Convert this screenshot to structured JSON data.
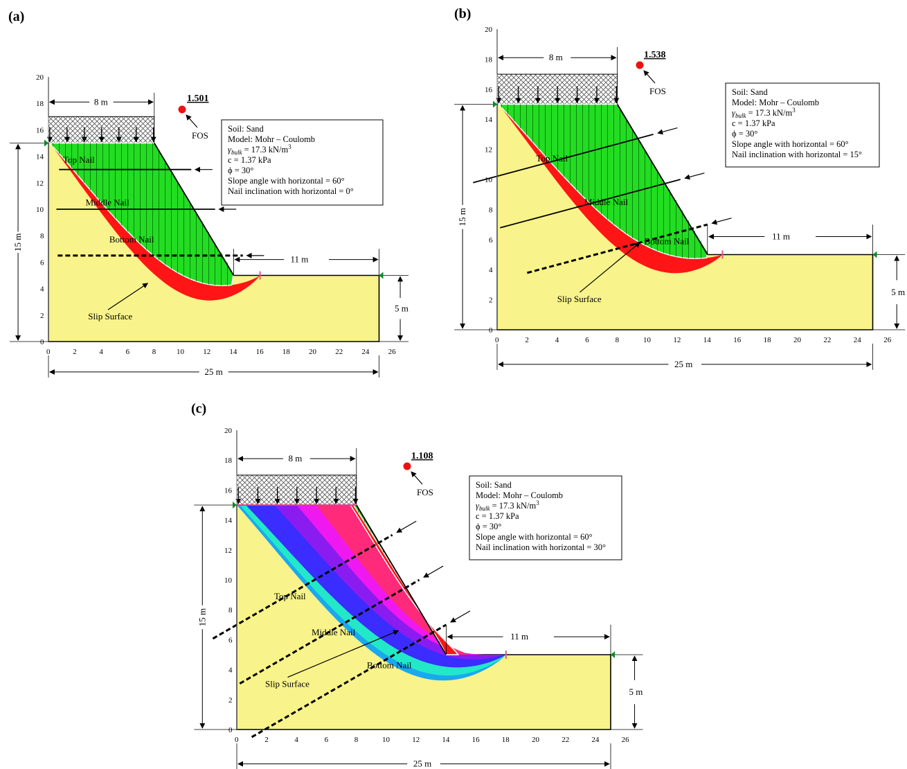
{
  "colors": {
    "soil": "#f8f38a",
    "sliding_mass": "#22dd22",
    "slip_red": "#ff1515",
    "surcharge_hatch": "#888888",
    "fos_dot": "#ee1111",
    "cyan": "#22e8c8",
    "blue": "#3b2cff",
    "violet": "#8a1cf0",
    "magenta": "#f018f0",
    "pink": "#ff2a7a",
    "sky": "#1aa8f0"
  },
  "panels": [
    {
      "label": "(a)",
      "fos_value": "1.501",
      "fos_label": "FOS",
      "info": {
        "soil": "Soil: Sand",
        "model": "Model: Mohr – Coulomb",
        "gamma": "γ",
        "gamma_sub": "bulk",
        "gamma_val": " = 17.3 kN/m",
        "gamma_sup": "3",
        "c": "c = 1.37 kPa",
        "phi": "ϕ = 30°",
        "slope_angle": "Slope angle with horizontal = 60°",
        "nail_incl": "Nail inclination with horizontal = 0°"
      },
      "dims": {
        "top": "8 m",
        "height": "15 m",
        "toe_len": "11 m",
        "toe_h": "5 m",
        "total": "25 m"
      },
      "nails": {
        "top": "Top Nail",
        "middle": "Middle Nail",
        "bottom": "Bottom Nail"
      },
      "slip_label": "Slip Surface",
      "x_ticks": [
        "0",
        "2",
        "4",
        "6",
        "8",
        "10",
        "12",
        "14",
        "16",
        "18",
        "20",
        "22",
        "24",
        "26"
      ],
      "y_ticks": [
        "0",
        "2",
        "4",
        "6",
        "8",
        "10",
        "12",
        "14",
        "16",
        "18",
        "20"
      ]
    },
    {
      "label": "(b)",
      "fos_value": "1.538",
      "fos_label": "FOS",
      "info": {
        "soil": "Soil: Sand",
        "model": "Model: Mohr – Coulomb",
        "gamma": "γ",
        "gamma_sub": "bulk",
        "gamma_val": " = 17.3 kN/m",
        "gamma_sup": "3",
        "c": "c = 1.37 kPa",
        "phi": "ϕ = 30°",
        "slope_angle": "Slope angle with horizontal = 60°",
        "nail_incl": "Nail inclination with horizontal = 15°"
      },
      "dims": {
        "top": "8 m",
        "height": "15 m",
        "toe_len": "11 m",
        "toe_h": "5 m",
        "total": "25 m"
      },
      "nails": {
        "top": "Top Nail",
        "middle": "Middle Nail",
        "bottom": "Bottom Nail"
      },
      "slip_label": "Slip Surface",
      "x_ticks": [
        "0",
        "2",
        "4",
        "6",
        "8",
        "10",
        "12",
        "14",
        "16",
        "18",
        "20",
        "22",
        "24",
        "26"
      ],
      "y_ticks": [
        "0",
        "2",
        "4",
        "6",
        "8",
        "10",
        "12",
        "14",
        "16",
        "18",
        "20"
      ]
    },
    {
      "label": "(c)",
      "fos_value": "1.108",
      "fos_label": "FOS",
      "info": {
        "soil": "Soil: Sand",
        "model": "Model: Mohr – Coulomb",
        "gamma": "γ",
        "gamma_sub": "bulk",
        "gamma_val": " = 17.3 kN/m",
        "gamma_sup": "3",
        "c": "c = 1.37 kPa",
        "phi": "ϕ = 30°",
        "slope_angle": "Slope angle with horizontal = 60°",
        "nail_incl": "Nail inclination with horizontal = 30°"
      },
      "dims": {
        "top": "8 m",
        "height": "15 m",
        "toe_len": "11 m",
        "toe_h": "5 m",
        "total": "25 m"
      },
      "nails": {
        "top": "Top Nail",
        "middle": "Middle Nail",
        "bottom": "Bottom Nail"
      },
      "slip_label": "Slip Surface",
      "x_ticks": [
        "0",
        "2",
        "4",
        "6",
        "8",
        "10",
        "12",
        "14",
        "16",
        "18",
        "20",
        "22",
        "24",
        "26"
      ],
      "y_ticks": [
        "0",
        "2",
        "4",
        "6",
        "8",
        "10",
        "12",
        "14",
        "16",
        "18",
        "20"
      ]
    }
  ]
}
